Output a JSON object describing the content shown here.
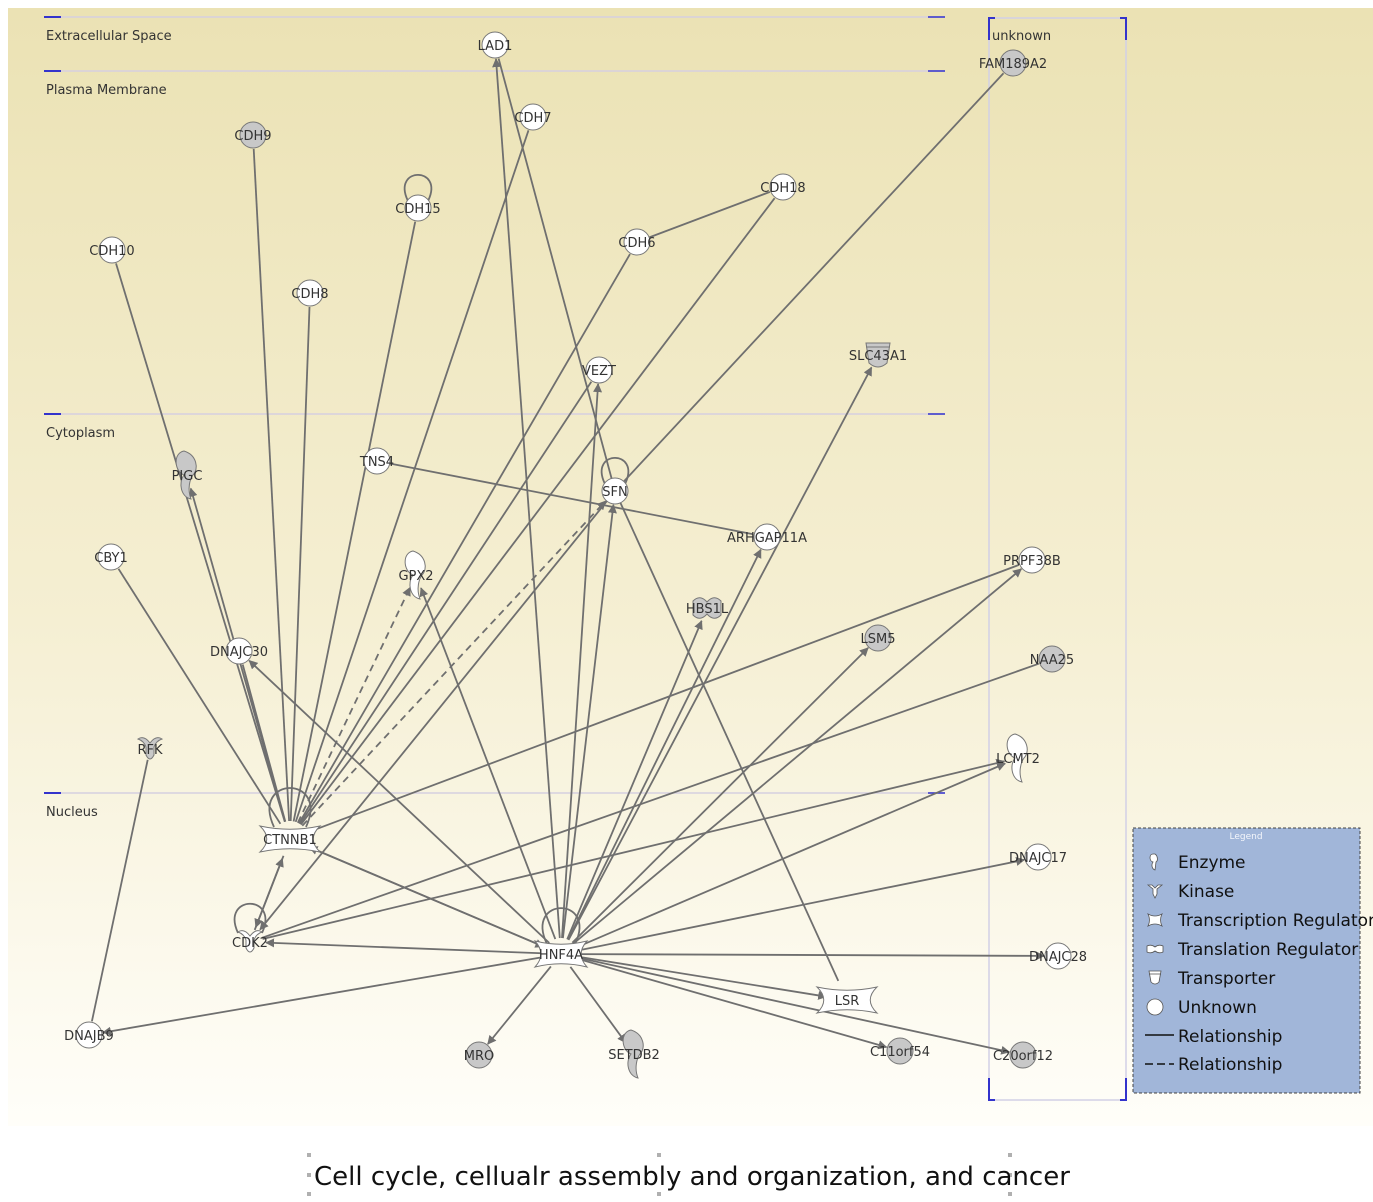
{
  "regions": [
    {
      "id": "extracellular",
      "label": "Extracellular Space"
    },
    {
      "id": "plasma",
      "label": "Plasma Membrane"
    },
    {
      "id": "cytoplasm",
      "label": "Cytoplasm"
    },
    {
      "id": "nucleus",
      "label": "Nucleus"
    },
    {
      "id": "unknown",
      "label": "unknown"
    }
  ],
  "nodes": [
    {
      "id": "LAD1",
      "label": "LAD1",
      "type": "unknown",
      "fill": "#ffffff"
    },
    {
      "id": "CDH7",
      "label": "CDH7",
      "type": "unknown",
      "fill": "#ffffff"
    },
    {
      "id": "CDH9",
      "label": "CDH9",
      "type": "unknown",
      "fill": "#c8c8c8"
    },
    {
      "id": "CDH15",
      "label": "CDH15",
      "type": "unknown",
      "fill": "#ffffff"
    },
    {
      "id": "CDH18",
      "label": "CDH18",
      "type": "unknown",
      "fill": "#ffffff"
    },
    {
      "id": "CDH6",
      "label": "CDH6",
      "type": "unknown",
      "fill": "#ffffff"
    },
    {
      "id": "CDH10",
      "label": "CDH10",
      "type": "unknown",
      "fill": "#ffffff"
    },
    {
      "id": "CDH8",
      "label": "CDH8",
      "type": "unknown",
      "fill": "#ffffff"
    },
    {
      "id": "VEZT",
      "label": "VEZT",
      "type": "unknown",
      "fill": "#ffffff"
    },
    {
      "id": "SLC43A1",
      "label": "SLC43A1",
      "type": "transporter",
      "fill": "#c8c8c8"
    },
    {
      "id": "FAM189A2",
      "label": "FAM189A2",
      "type": "unknown",
      "fill": "#c8c8c8"
    },
    {
      "id": "TNS4",
      "label": "TNS4",
      "type": "unknown",
      "fill": "#ffffff"
    },
    {
      "id": "PIGC",
      "label": "PIGC",
      "type": "enzyme",
      "fill": "#c8c8c8"
    },
    {
      "id": "SFN",
      "label": "SFN",
      "type": "unknown",
      "fill": "#ffffff"
    },
    {
      "id": "ARHGAP11A",
      "label": "ARHGAP11A",
      "type": "unknown",
      "fill": "#ffffff"
    },
    {
      "id": "CBY1",
      "label": "CBY1",
      "type": "unknown",
      "fill": "#ffffff"
    },
    {
      "id": "GPX2",
      "label": "GPX2",
      "type": "enzyme",
      "fill": "#ffffff"
    },
    {
      "id": "HBS1L",
      "label": "HBS1L",
      "type": "translation",
      "fill": "#c8c8c8"
    },
    {
      "id": "PRPF38B",
      "label": "PRPF38B",
      "type": "unknown",
      "fill": "#ffffff"
    },
    {
      "id": "LSM5",
      "label": "LSM5",
      "type": "unknown",
      "fill": "#c8c8c8"
    },
    {
      "id": "NAA25",
      "label": "NAA25",
      "type": "unknown",
      "fill": "#c8c8c8"
    },
    {
      "id": "DNAJC30",
      "label": "DNAJC30",
      "type": "unknown",
      "fill": "#ffffff"
    },
    {
      "id": "RFK",
      "label": "RFK",
      "type": "kinase",
      "fill": "#c8c8c8"
    },
    {
      "id": "LCMT2",
      "label": "LCMT2",
      "type": "enzyme",
      "fill": "#ffffff"
    },
    {
      "id": "CTNNB1",
      "label": "CTNNB1",
      "type": "transcription",
      "fill": "#ffffff"
    },
    {
      "id": "DNAJC17",
      "label": "DNAJC17",
      "type": "unknown",
      "fill": "#ffffff"
    },
    {
      "id": "CDK2",
      "label": "CDK2",
      "type": "kinase",
      "fill": "#ffffff"
    },
    {
      "id": "HNF4A",
      "label": "HNF4A",
      "type": "transcription",
      "fill": "#ffffff"
    },
    {
      "id": "DNAJC28",
      "label": "DNAJC28",
      "type": "unknown",
      "fill": "#ffffff"
    },
    {
      "id": "LSR",
      "label": "LSR",
      "type": "transcription",
      "fill": "#ffffff"
    },
    {
      "id": "DNAJB9",
      "label": "DNAJB9",
      "type": "unknown",
      "fill": "#ffffff"
    },
    {
      "id": "MRO",
      "label": "MRO",
      "type": "unknown",
      "fill": "#c8c8c8"
    },
    {
      "id": "SETDB2",
      "label": "SETDB2",
      "type": "enzyme",
      "fill": "#c8c8c8"
    },
    {
      "id": "C11orf54",
      "label": "C11orf54",
      "type": "unknown",
      "fill": "#c8c8c8"
    },
    {
      "id": "C20orf12",
      "label": "C20orf12",
      "type": "unknown",
      "fill": "#c8c8c8"
    }
  ],
  "edges": [
    {
      "from": "HNF4A",
      "to": "LAD1",
      "arrow": true,
      "dashed": false
    },
    {
      "from": "HNF4A",
      "to": "VEZT",
      "arrow": true,
      "dashed": false
    },
    {
      "from": "HNF4A",
      "to": "SFN",
      "arrow": true,
      "dashed": false
    },
    {
      "from": "HNF4A",
      "to": "ARHGAP11A",
      "arrow": true,
      "dashed": false
    },
    {
      "from": "HNF4A",
      "to": "HBS1L",
      "arrow": true,
      "dashed": false
    },
    {
      "from": "HNF4A",
      "to": "SLC43A1",
      "arrow": true,
      "dashed": false
    },
    {
      "from": "HNF4A",
      "to": "LSM5",
      "arrow": true,
      "dashed": false
    },
    {
      "from": "HNF4A",
      "to": "PRPF38B",
      "arrow": true,
      "dashed": false
    },
    {
      "from": "HNF4A",
      "to": "LCMT2",
      "arrow": true,
      "dashed": false
    },
    {
      "from": "HNF4A",
      "to": "DNAJC17",
      "arrow": true,
      "dashed": false
    },
    {
      "from": "HNF4A",
      "to": "DNAJC28",
      "arrow": true,
      "dashed": false
    },
    {
      "from": "HNF4A",
      "to": "LSR",
      "arrow": true,
      "dashed": false
    },
    {
      "from": "HNF4A",
      "to": "C11orf54",
      "arrow": true,
      "dashed": false
    },
    {
      "from": "HNF4A",
      "to": "C20orf12",
      "arrow": true,
      "dashed": false
    },
    {
      "from": "HNF4A",
      "to": "SETDB2",
      "arrow": true,
      "dashed": false
    },
    {
      "from": "HNF4A",
      "to": "MRO",
      "arrow": true,
      "dashed": false
    },
    {
      "from": "HNF4A",
      "to": "DNAJB9",
      "arrow": true,
      "dashed": false
    },
    {
      "from": "HNF4A",
      "to": "CDK2",
      "arrow": true,
      "dashed": false
    },
    {
      "from": "HNF4A",
      "to": "CTNNB1",
      "arrow": true,
      "dashed": false
    },
    {
      "from": "CTNNB1",
      "to": "HNF4A",
      "arrow": true,
      "dashed": false
    },
    {
      "from": "HNF4A",
      "to": "DNAJC30",
      "arrow": true,
      "dashed": false
    },
    {
      "from": "HNF4A",
      "to": "GPX2",
      "arrow": true,
      "dashed": false
    },
    {
      "from": "CTNNB1",
      "to": "PIGC",
      "arrow": true,
      "dashed": false
    },
    {
      "from": "CTNNB1",
      "to": "GPX2",
      "arrow": true,
      "dashed": true
    },
    {
      "from": "CTNNB1",
      "to": "SFN",
      "arrow": true,
      "dashed": true
    },
    {
      "from": "CTNNB1",
      "to": "CDH9",
      "arrow": false,
      "dashed": false
    },
    {
      "from": "CTNNB1",
      "to": "CDH10",
      "arrow": false,
      "dashed": false
    },
    {
      "from": "CTNNB1",
      "to": "CDH8",
      "arrow": false,
      "dashed": false
    },
    {
      "from": "CTNNB1",
      "to": "CDH15",
      "arrow": false,
      "dashed": false
    },
    {
      "from": "CTNNB1",
      "to": "CDH7",
      "arrow": false,
      "dashed": false
    },
    {
      "from": "CTNNB1",
      "to": "CDH6",
      "arrow": false,
      "dashed": false
    },
    {
      "from": "CTNNB1",
      "to": "CDH18",
      "arrow": false,
      "dashed": false
    },
    {
      "from": "CTNNB1",
      "to": "VEZT",
      "arrow": false,
      "dashed": false
    },
    {
      "from": "CTNNB1",
      "to": "DNAJC30",
      "arrow": false,
      "dashed": false
    },
    {
      "from": "CTNNB1",
      "to": "CBY1",
      "arrow": false,
      "dashed": false
    },
    {
      "from": "CTNNB1",
      "to": "PRPF38B",
      "arrow": false,
      "dashed": false
    },
    {
      "from": "CTNNB1",
      "to": "CDK2",
      "arrow": true,
      "dashed": false
    },
    {
      "from": "CDK2",
      "to": "CTNNB1",
      "arrow": true,
      "dashed": false
    },
    {
      "from": "CDK2",
      "to": "LCMT2",
      "arrow": true,
      "dashed": false
    },
    {
      "from": "CDK2",
      "to": "NAA25",
      "arrow": false,
      "dashed": false
    },
    {
      "from": "SFN",
      "to": "CDK2",
      "arrow": true,
      "dashed": false
    },
    {
      "from": "SFN",
      "to": "FAM189A2",
      "arrow": false,
      "dashed": false
    },
    {
      "from": "SFN",
      "to": "LAD1",
      "arrow": false,
      "dashed": false
    },
    {
      "from": "SFN",
      "to": "LSR",
      "arrow": false,
      "dashed": false
    },
    {
      "from": "TNS4",
      "to": "ARHGAP11A",
      "arrow": false,
      "dashed": false
    },
    {
      "from": "CDH6",
      "to": "CDH18",
      "arrow": false,
      "dashed": false
    },
    {
      "from": "RFK",
      "to": "DNAJB9",
      "arrow": false,
      "dashed": false
    }
  ],
  "self_loops": [
    "CDH15",
    "SFN",
    "CTNNB1",
    "CDK2",
    "HNF4A"
  ],
  "legend": {
    "title": "Legend",
    "items": [
      {
        "icon": "enzyme",
        "label": "Enzyme"
      },
      {
        "icon": "kinase",
        "label": "Kinase"
      },
      {
        "icon": "transcription",
        "label": "Transcription Regulator"
      },
      {
        "icon": "translation",
        "label": "Translation Regulator"
      },
      {
        "icon": "transporter",
        "label": "Transporter"
      },
      {
        "icon": "unknown",
        "label": "Unknown"
      },
      {
        "icon": "solid-line",
        "label": "Relationship"
      },
      {
        "icon": "dashed-line",
        "label": "Relationship"
      }
    ]
  },
  "caption": "Cell cycle, cellualr assembly and organization, and cancer",
  "colors": {
    "bg_top": "#ebe2b4",
    "bg_bottom": "#fffef9",
    "edge": "#6f6f6f",
    "node_gray": "#c8c8c8",
    "legend_bg": "#a1b6d9",
    "region_tick": "#3333cc"
  }
}
